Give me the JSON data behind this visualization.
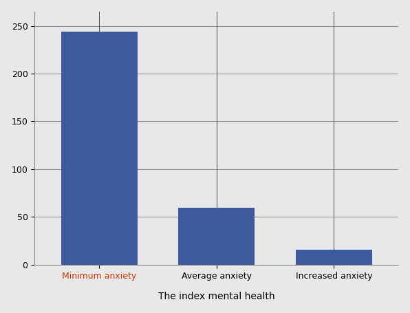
{
  "categories": [
    "Minimum anxiety",
    "Average anxiety",
    "Increased anxiety"
  ],
  "values": [
    244,
    60,
    16
  ],
  "bar_color": "#3D5A9E",
  "bar_width": 0.65,
  "xlabel": "The index mental health",
  "xlabel_color": "#000000",
  "xlabel_fontsize": 10,
  "tick_label_color_first": "#CC3300",
  "tick_label_color_others": "#000000",
  "background_color": "#E8E8E8",
  "plot_bg_color": "#E8E8E8",
  "ytick_line_color": "#888888",
  "vline_color": "#444444",
  "spine_color": "#888888",
  "ylim": [
    0,
    265
  ],
  "yticks": [
    0,
    50,
    100,
    150,
    200,
    250
  ],
  "figsize": [
    5.96,
    4.55
  ],
  "dpi": 100
}
